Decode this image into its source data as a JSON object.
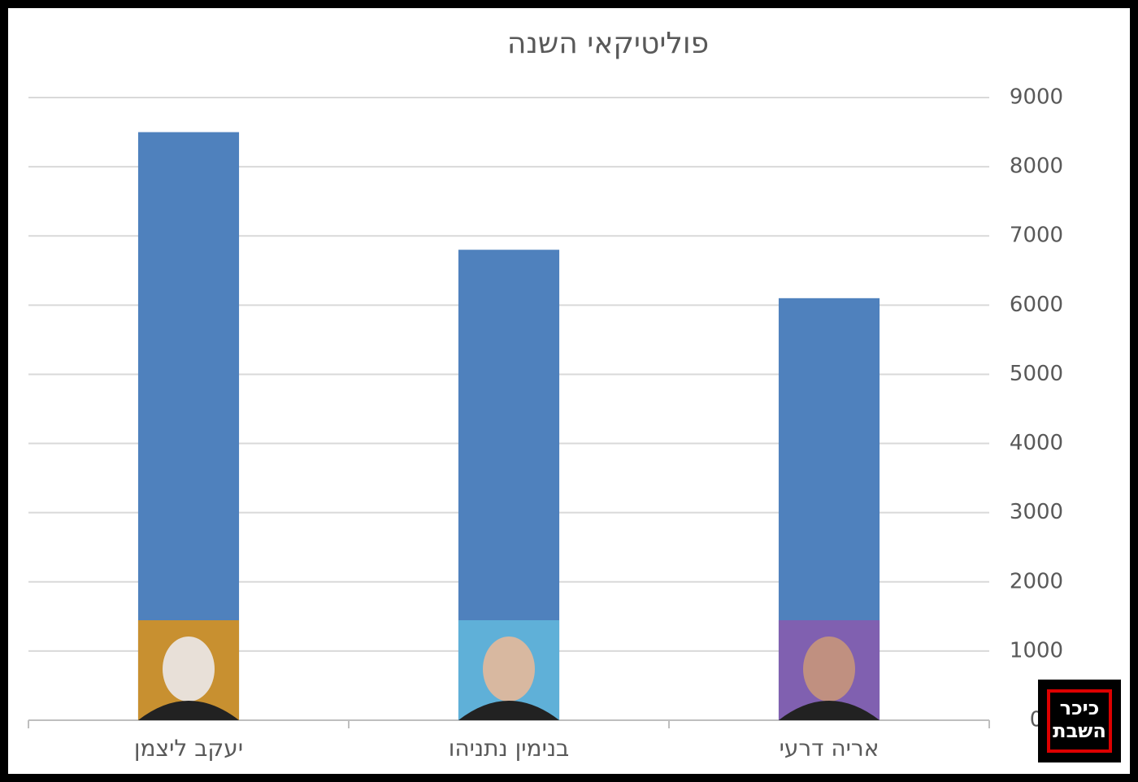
{
  "chart_data": {
    "type": "bar",
    "title": "פוליטיקאי השנה",
    "categories": [
      "יעקב ליצמן",
      "בנימין נתניהו",
      "אריה דרעי"
    ],
    "values": [
      8500,
      6800,
      6100
    ],
    "color": "#4f81bd",
    "ylim": [
      0,
      9000
    ],
    "yticks": [
      0,
      1000,
      2000,
      3000,
      4000,
      5000,
      6000,
      7000,
      8000,
      9000
    ],
    "grid": true,
    "y_axis_side": "right"
  },
  "logo": {
    "lines": [
      "כיכר",
      "השבת"
    ]
  }
}
